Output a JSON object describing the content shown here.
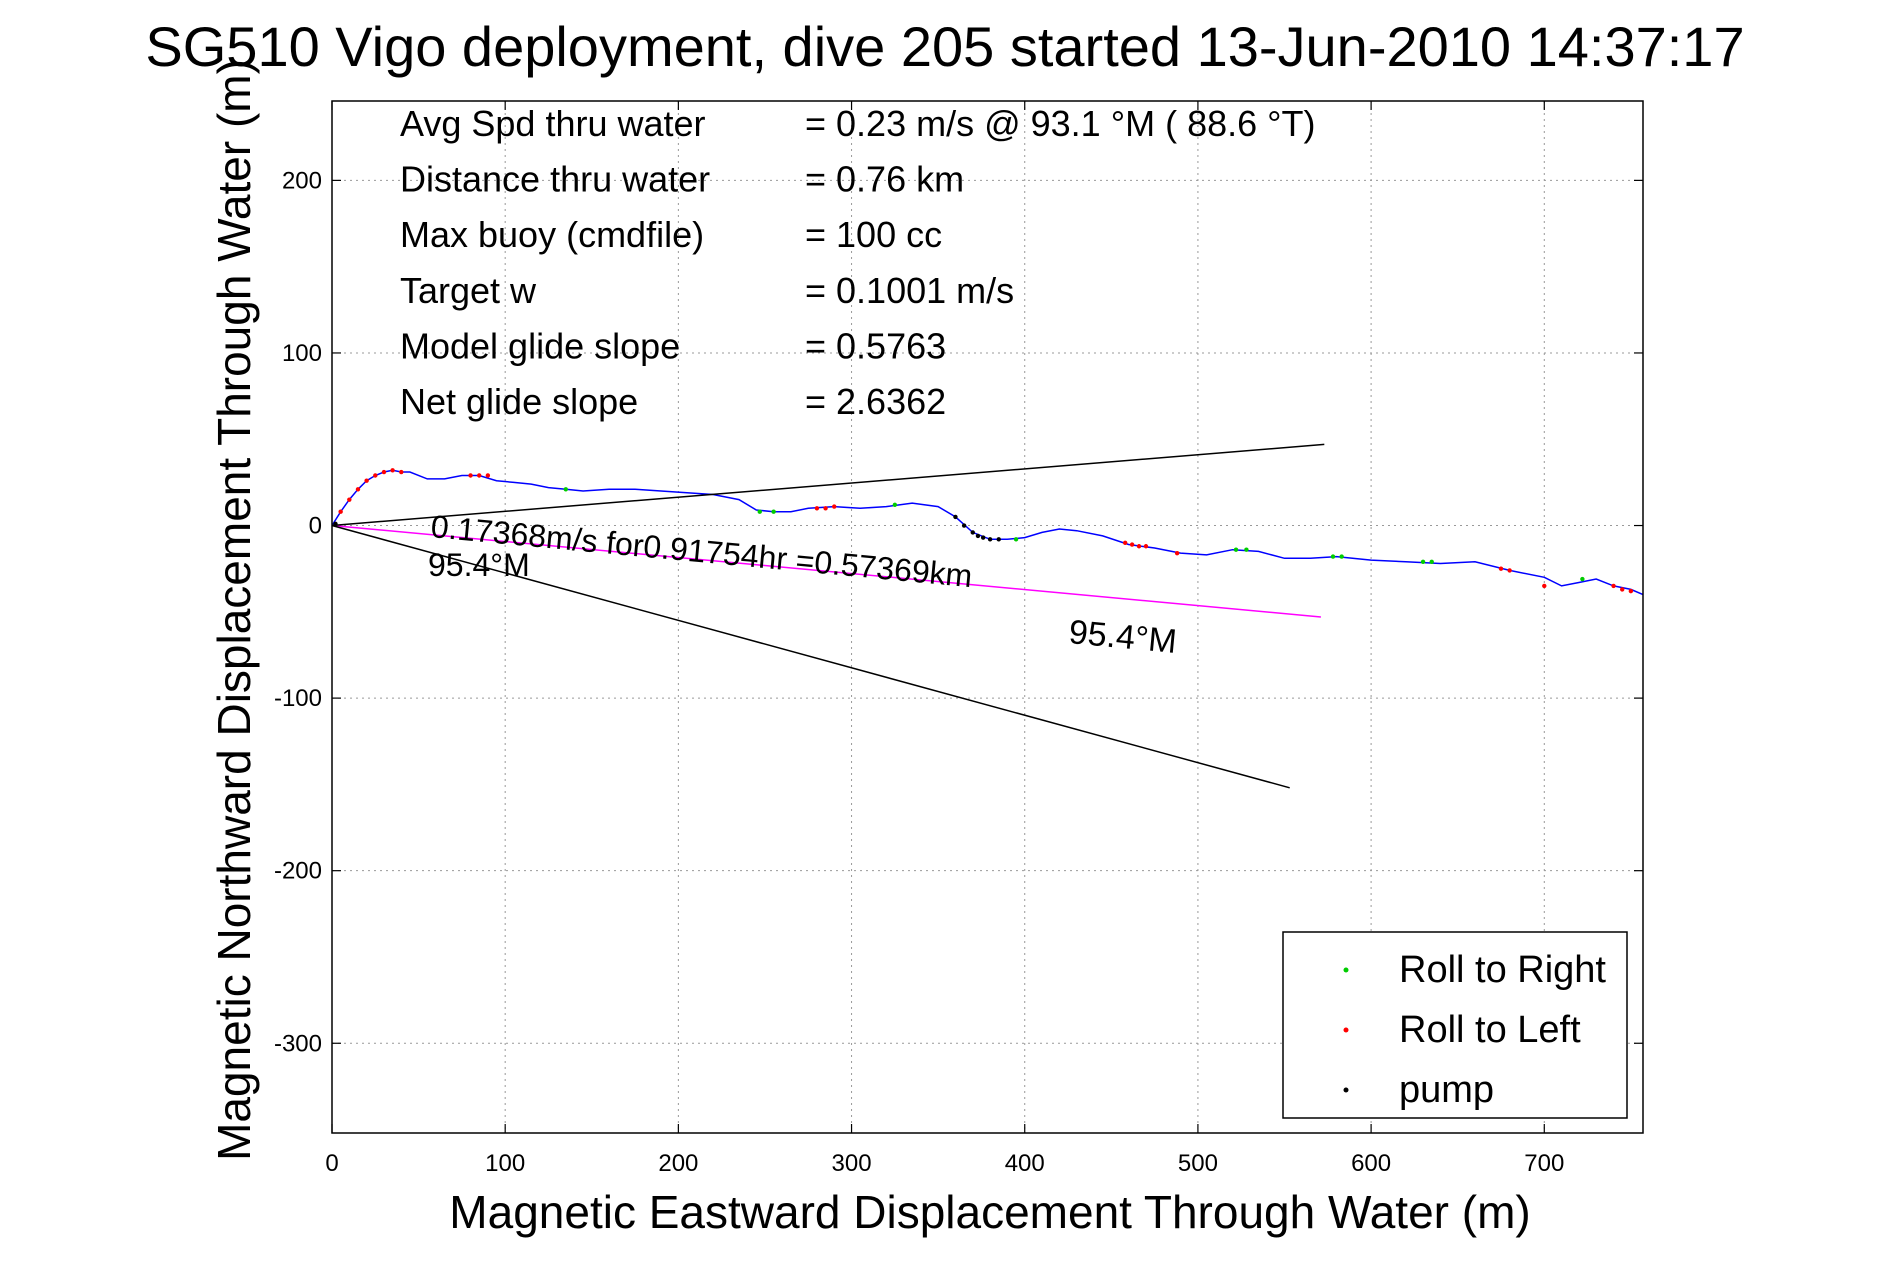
{
  "chart_data": {
    "type": "line",
    "title": "SG510 Vigo deployment, dive 205 started 13-Jun-2010 14:37:17",
    "xlabel": "Magnetic Eastward Displacement Through Water (m)",
    "ylabel": "Magnetic Northward Displacement Through Water (m)",
    "xlim": [
      0,
      757
    ],
    "ylim": [
      -352,
      246
    ],
    "xticks": [
      0,
      100,
      200,
      300,
      400,
      500,
      600,
      700
    ],
    "yticks": [
      200,
      100,
      0,
      -100,
      -200,
      -300
    ],
    "grid": true,
    "legend_position": "bottom-right",
    "legend": [
      {
        "label": "Roll to Right",
        "color": "#00cc00"
      },
      {
        "label": "Roll to Left",
        "color": "#ff0000"
      },
      {
        "label": "pump",
        "color": "#000000"
      }
    ],
    "info_lines": [
      {
        "label": "Avg Spd thru water",
        "value": "=  0.23 m/s @  93.1 °M ( 88.6 °T)"
      },
      {
        "label": "Distance thru water",
        "value": "=  0.76 km"
      },
      {
        "label": "Max buoy (cmdfile)",
        "value": "= 100 cc"
      },
      {
        "label": "Target w",
        "value": "= 0.1001 m/s"
      },
      {
        "label": "Model glide slope",
        "value": "= 0.5763"
      },
      {
        "label": "Net glide slope",
        "value": "= 2.6362"
      }
    ],
    "annotations": {
      "current_text": "0.17368m/s for0.91754hr =0.57369km",
      "heading_near": "95.4°M",
      "heading_far": "95.4°M"
    },
    "series": [
      {
        "name": "track",
        "color": "#0000ff",
        "x": [
          0,
          5,
          10,
          15,
          20,
          25,
          30,
          35,
          40,
          45,
          55,
          65,
          75,
          85,
          95,
          105,
          115,
          125,
          135,
          145,
          160,
          175,
          190,
          205,
          220,
          235,
          245,
          255,
          265,
          275,
          290,
          305,
          320,
          335,
          350,
          360,
          370,
          380,
          390,
          400,
          410,
          420,
          430,
          445,
          460,
          475,
          490,
          505,
          520,
          535,
          550,
          565,
          580,
          600,
          620,
          640,
          660,
          680,
          700,
          710,
          720,
          730,
          740,
          750,
          757
        ],
        "y": [
          0,
          8,
          15,
          21,
          26,
          29,
          31,
          32,
          31,
          31,
          27,
          27,
          29,
          29,
          26,
          25,
          24,
          22,
          21,
          20,
          21,
          21,
          20,
          19,
          18,
          15,
          9,
          8,
          8,
          10,
          11,
          10,
          11,
          13,
          11,
          5,
          -4,
          -8,
          -8,
          -7,
          -4,
          -2,
          -3,
          -6,
          -11,
          -13,
          -16,
          -17,
          -14,
          -15,
          -19,
          -19,
          -18,
          -20,
          -21,
          -22,
          -21,
          -26,
          -30,
          -35,
          -33,
          -31,
          -35,
          -37,
          -40
        ]
      },
      {
        "name": "current",
        "color": "#ff00ff",
        "x": [
          0,
          571
        ],
        "y": [
          0,
          -53
        ]
      },
      {
        "name": "heading upper",
        "color": "#000000",
        "x": [
          0,
          573
        ],
        "y": [
          0,
          47
        ]
      },
      {
        "name": "heading lower",
        "color": "#000000",
        "x": [
          0,
          553
        ],
        "y": [
          0,
          -152
        ]
      }
    ],
    "markers": {
      "roll_right": [
        [
          135,
          21
        ],
        [
          247,
          8
        ],
        [
          255,
          8
        ],
        [
          325,
          12
        ],
        [
          395,
          -8
        ],
        [
          522,
          -14
        ],
        [
          528,
          -14
        ],
        [
          578,
          -18
        ],
        [
          583,
          -18
        ],
        [
          630,
          -21
        ],
        [
          635,
          -21
        ],
        [
          722,
          -31
        ]
      ],
      "roll_left": [
        [
          5,
          8
        ],
        [
          10,
          15
        ],
        [
          15,
          21
        ],
        [
          20,
          26
        ],
        [
          25,
          29
        ],
        [
          30,
          31
        ],
        [
          35,
          32
        ],
        [
          40,
          31
        ],
        [
          80,
          29
        ],
        [
          85,
          29
        ],
        [
          90,
          29
        ],
        [
          280,
          10
        ],
        [
          285,
          10
        ],
        [
          290,
          11
        ],
        [
          458,
          -10
        ],
        [
          462,
          -11
        ],
        [
          466,
          -12
        ],
        [
          470,
          -12
        ],
        [
          488,
          -16
        ],
        [
          675,
          -25
        ],
        [
          680,
          -26
        ],
        [
          700,
          -35
        ],
        [
          740,
          -35
        ],
        [
          745,
          -37
        ],
        [
          750,
          -38
        ]
      ],
      "pump": [
        [
          360,
          5
        ],
        [
          365,
          0
        ],
        [
          370,
          -4
        ],
        [
          373,
          -6
        ],
        [
          376,
          -7
        ],
        [
          380,
          -8
        ],
        [
          385,
          -8
        ],
        [
          2,
          1
        ]
      ]
    }
  }
}
